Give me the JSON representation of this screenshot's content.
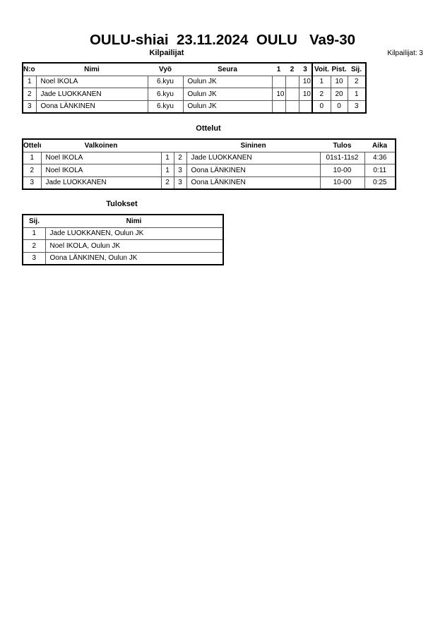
{
  "header": {
    "title": "OULU-shiai  23.11.2024  OULU   Va9-30",
    "competitors_heading": "Kilpailijat",
    "competitors_count": "Kilpailijat: 3"
  },
  "competitors": {
    "columns": [
      "N:o",
      "Nimi",
      "Vyö",
      "Seura",
      "1",
      "2",
      "3",
      "Voit.",
      "Pist.",
      "Sij."
    ],
    "rows": [
      [
        "1",
        "Noel IKOLA",
        "6.kyu",
        "Oulun JK",
        "",
        "",
        "10",
        "1",
        "10",
        "2"
      ],
      [
        "2",
        "Jade LUOKKANEN",
        "6.kyu",
        "Oulun JK",
        "10",
        "",
        "10",
        "2",
        "20",
        "1"
      ],
      [
        "3",
        "Oona LÄNKINEN",
        "6.kyu",
        "Oulun JK",
        "",
        "",
        "",
        "0",
        "0",
        "3"
      ]
    ]
  },
  "matches": {
    "heading": "Ottelut",
    "columns": [
      "Ottelu",
      "Valkoinen",
      "",
      "",
      "Sininen",
      "Tulos",
      "Aika"
    ],
    "rows": [
      [
        "1",
        "Noel IKOLA",
        "1",
        "2",
        "Jade LUOKKANEN",
        "01s1-11s2",
        "4:36"
      ],
      [
        "2",
        "Noel IKOLA",
        "1",
        "3",
        "Oona LÄNKINEN",
        "10-00",
        "0:11"
      ],
      [
        "3",
        "Jade LUOKKANEN",
        "2",
        "3",
        "Oona LÄNKINEN",
        "10-00",
        "0:25"
      ]
    ]
  },
  "results": {
    "heading": "Tulokset",
    "columns": [
      "Sij.",
      "Nimi"
    ],
    "rows": [
      [
        "1",
        "Jade LUOKKANEN, Oulun JK"
      ],
      [
        "2",
        "Noel IKOLA, Oulun JK"
      ],
      [
        "3",
        "Oona LÄNKINEN, Oulun JK"
      ]
    ]
  }
}
